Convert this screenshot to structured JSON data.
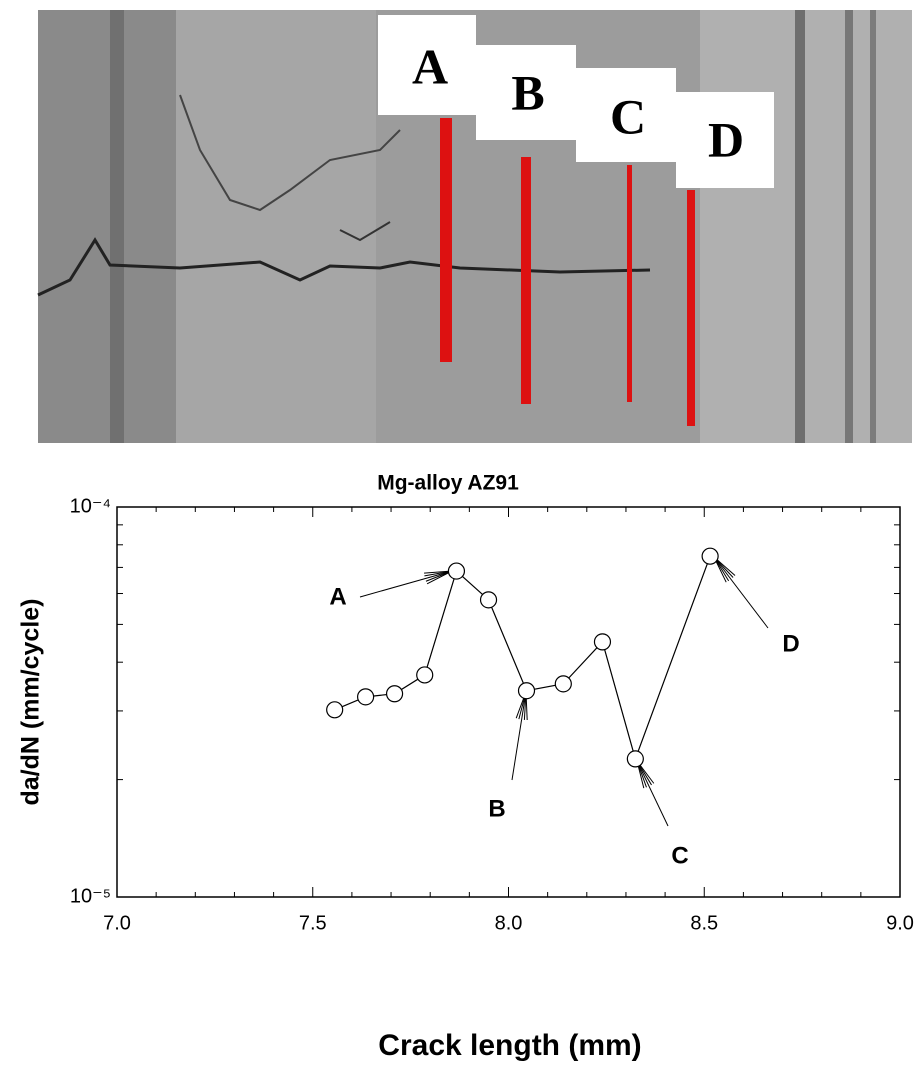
{
  "photo": {
    "labels": [
      "A",
      "B",
      "C",
      "D"
    ]
  },
  "chart_data": {
    "type": "line",
    "title": "Mg-alloy AZ91",
    "x_label": "Crack length (mm)",
    "y_label": "da/dN (mm/cycle)",
    "x": [
      7.556,
      7.635,
      7.709,
      7.786,
      7.867,
      7.949,
      8.046,
      8.14,
      8.24,
      8.324,
      8.515
    ],
    "series": [
      {
        "color": "#000000",
        "values": [
          3.02e-05,
          3.26e-05,
          3.32e-05,
          3.71e-05,
          6.85e-05,
          5.78e-05,
          3.38e-05,
          3.52e-05,
          4.51e-05,
          2.26e-05,
          7.48e-05
        ]
      }
    ],
    "xlim": [
      7,
      9
    ],
    "xticks": [
      {
        "value": 7,
        "label": "7.0"
      },
      7.5,
      {
        "value": 8,
        "label": "8.0"
      },
      8.5,
      {
        "value": 9,
        "label": "9.0"
      }
    ],
    "ylim": [
      1e-05,
      0.0001
    ],
    "yticks": [
      {
        "value": 1e-05,
        "label": "10⁻⁵"
      },
      {
        "value": 0.0001,
        "label": "10⁻⁴"
      }
    ],
    "log_y": true,
    "annotations": [
      "A",
      "B",
      "C",
      "D"
    ]
  }
}
